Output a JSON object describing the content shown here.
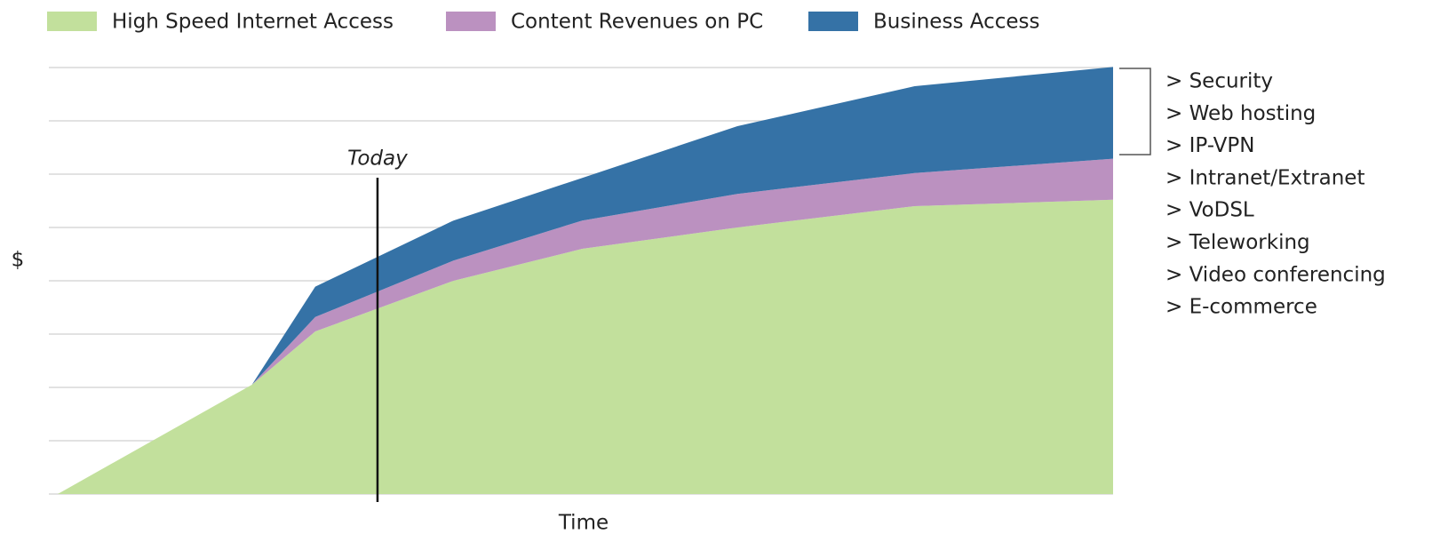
{
  "chart_data": {
    "type": "area",
    "stacked": true,
    "xlabel": "Time",
    "ylabel": "$",
    "x": [
      0,
      18.4,
      24.4,
      37.5,
      49.7,
      64.4,
      81.2,
      100
    ],
    "xlim": [
      0,
      100
    ],
    "ylim": [
      0,
      8
    ],
    "yticks": [
      0,
      1,
      2,
      3,
      4,
      5,
      6,
      7,
      8
    ],
    "grid": true,
    "legend": "top",
    "series": [
      {
        "name": "High Speed Internet Access",
        "color": "#c2e09c",
        "values": [
          0,
          2.05,
          3.05,
          4.0,
          4.6,
          5.0,
          5.4,
          5.52
        ]
      },
      {
        "name": "Content Revenues on PC",
        "color": "#bb91c0",
        "values": [
          0,
          0,
          0.27,
          0.38,
          0.53,
          0.63,
          0.62,
          0.77
        ]
      },
      {
        "name": "Business Access",
        "color": "#3572a6",
        "values": [
          0,
          0,
          0.57,
          0.75,
          0.8,
          1.27,
          1.63,
          1.72
        ]
      }
    ],
    "marker_line": {
      "label": "Today",
      "x": 30.3
    },
    "annotations": [
      "> Security",
      "> Web hosting",
      "> IP-VPN",
      "> Intranet/Extranet",
      "> VoDSL",
      "> Teleworking",
      "> Video conferencing",
      "> E-commerce"
    ]
  }
}
